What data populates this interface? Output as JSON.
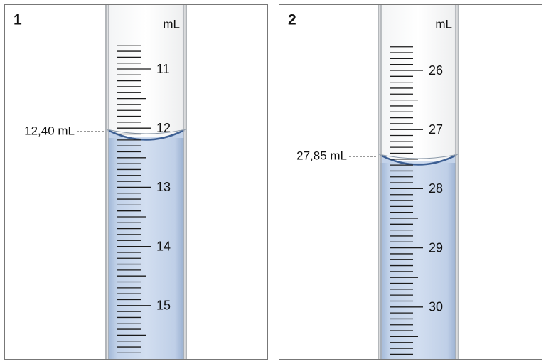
{
  "panels": [
    {
      "number": "1",
      "unit": "mL",
      "scale": [
        11,
        12,
        13,
        14,
        15
      ],
      "reading": "12,40 mL"
    },
    {
      "number": "2",
      "unit": "mL",
      "scale": [
        26,
        27,
        28,
        29,
        30
      ],
      "reading": "27,85 mL"
    }
  ]
}
